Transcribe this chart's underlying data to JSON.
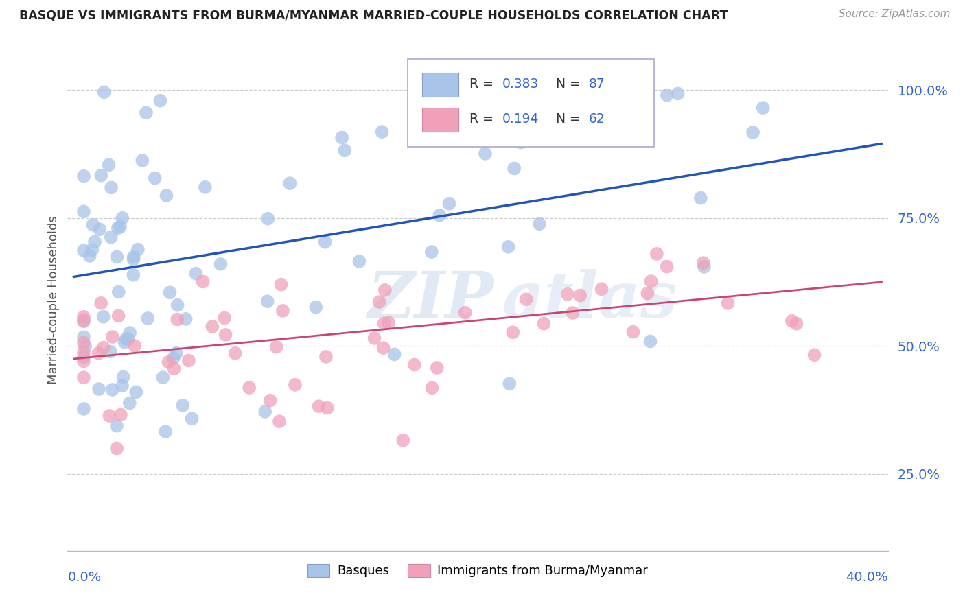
{
  "title": "BASQUE VS IMMIGRANTS FROM BURMA/MYANMAR MARRIED-COUPLE HOUSEHOLDS CORRELATION CHART",
  "source": "Source: ZipAtlas.com",
  "ylabel": "Married-couple Households",
  "legend_group1": "Basques",
  "legend_group2": "Immigrants from Burma/Myanmar",
  "color_blue": "#a8c4e8",
  "color_pink": "#f0a0b8",
  "line_color_blue": "#2255bb",
  "line_color_pink": "#cc4477",
  "watermark_zip": "ZIP",
  "watermark_atlas": "atlas",
  "ytick_vals": [
    0.25,
    0.5,
    0.75,
    1.0
  ],
  "ytick_labels": [
    "25.0%",
    "50.0%",
    "75.0%",
    "100.0%"
  ],
  "blue_line_x": [
    0.0,
    0.4
  ],
  "blue_line_y": [
    0.635,
    0.895
  ],
  "pink_line_x": [
    0.0,
    0.4
  ],
  "pink_line_y": [
    0.475,
    0.625
  ],
  "xlim": [
    0.0,
    0.4
  ],
  "ylim": [
    0.1,
    1.08
  ],
  "R1": 0.383,
  "N1": 87,
  "R2": 0.194,
  "N2": 62
}
